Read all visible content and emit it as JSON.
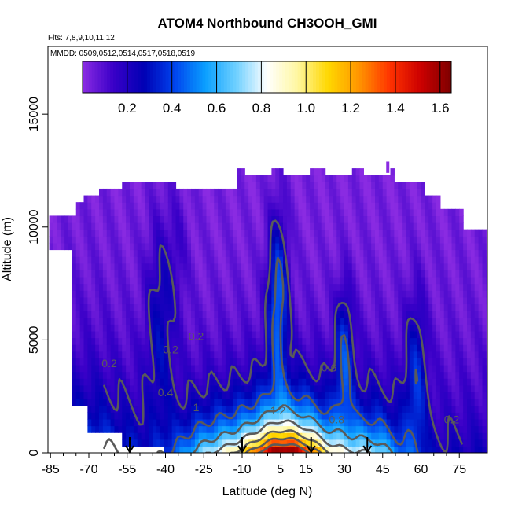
{
  "chart_data": {
    "type": "heatmap",
    "title": "ATOM4 Northbound CH3OOH_GMI",
    "subtitle_flights": "Flts: 7,8,9,10,11,12",
    "subtitle_dates": "MMDD: 0509,0512,0514,0517,0518,0519",
    "xlabel": "Latitude (deg N)",
    "ylabel": "Altitude (m)",
    "xlim": [
      -86,
      86
    ],
    "ylim": [
      0,
      18000
    ],
    "x_ticks": [
      -85,
      -70,
      -55,
      -40,
      -25,
      -10,
      5,
      15,
      30,
      45,
      60,
      75
    ],
    "y_ticks": [
      0,
      5000,
      10000,
      15000
    ],
    "colorbar": {
      "range": [
        0.0,
        1.65
      ],
      "ticks": [
        "0.2",
        "0.4",
        "0.6",
        "0.8",
        "1.0",
        "1.2",
        "1.4",
        "1.6"
      ],
      "tick_values": [
        0.2,
        0.4,
        0.6,
        0.8,
        1.0,
        1.2,
        1.4,
        1.6
      ],
      "colors": [
        "#8a2be2",
        "#3a00c8",
        "#0000b4",
        "#0044ee",
        "#0aa0ff",
        "#6fd0ff",
        "#ffffff",
        "#fff7a0",
        "#ffd700",
        "#ff9500",
        "#ff3300",
        "#cc0000",
        "#7d0000"
      ]
    },
    "contour_labels": [
      {
        "text": "0.2",
        "lat": -62,
        "alt": 3800
      },
      {
        "text": "0.2",
        "lat": -38,
        "alt": 4400
      },
      {
        "text": "0.2",
        "lat": -28,
        "alt": 5000
      },
      {
        "text": "0.4",
        "lat": -40,
        "alt": 2500
      },
      {
        "text": "1",
        "lat": -28,
        "alt": 1850
      },
      {
        "text": "1.2",
        "lat": 4,
        "alt": 1700
      },
      {
        "text": "0.6",
        "lat": 24,
        "alt": 3600
      },
      {
        "text": "0.8",
        "lat": 27,
        "alt": 1300
      },
      {
        "text": "0.2",
        "lat": 72,
        "alt": 1300
      }
    ],
    "arrows_lat": [
      -54,
      -10,
      17,
      39
    ],
    "cross_section_summary": {
      "latitudes": [
        -85,
        -70,
        -55,
        -40,
        -25,
        -10,
        5,
        15,
        30,
        45,
        60,
        75
      ],
      "surface_values": [
        0.2,
        0.3,
        0.4,
        0.6,
        1.0,
        1.3,
        1.55,
        1.5,
        1.1,
        0.8,
        0.5,
        0.3
      ],
      "peak_value": 1.62,
      "peak_lat": 8,
      "peak_alt": 800
    }
  }
}
